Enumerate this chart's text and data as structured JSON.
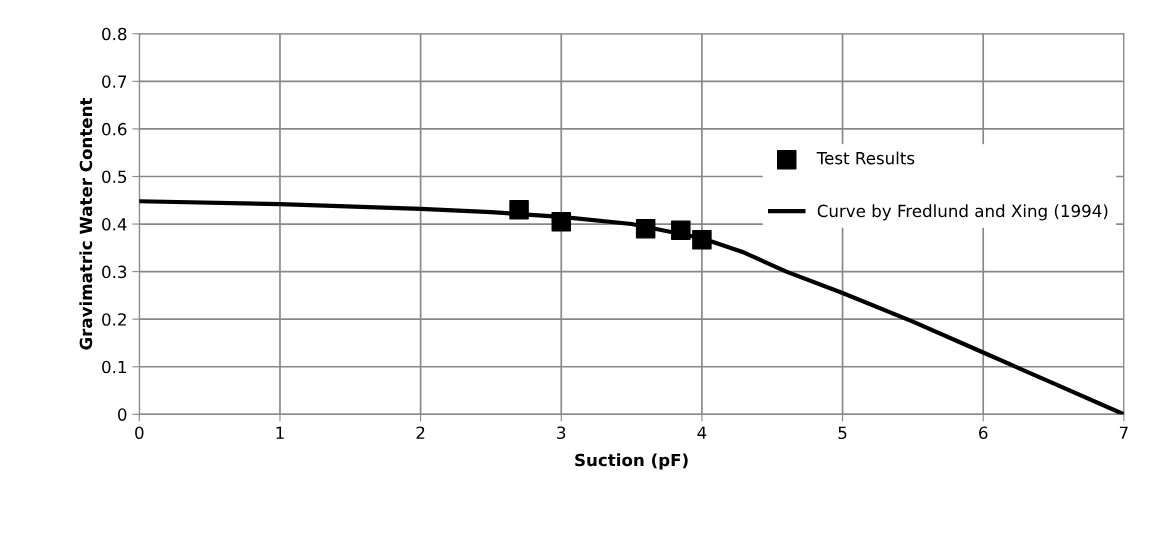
{
  "chart_data": {
    "type": "scatter",
    "xlabel": "Suction (pF)",
    "ylabel": "Gravimatric Water Content",
    "xlim": [
      0,
      7
    ],
    "ylim": [
      0,
      0.8
    ],
    "xticks": [
      0,
      1,
      2,
      3,
      4,
      5,
      6,
      7
    ],
    "yticks": [
      0,
      0.1,
      0.2,
      0.3,
      0.4,
      0.5,
      0.6,
      0.7,
      0.8
    ],
    "grid": true,
    "legend": "right",
    "series": [
      {
        "name": "Test Results",
        "marker": "square",
        "color": "#000000",
        "x": [
          2.7,
          3.0,
          3.6,
          3.85,
          4.0
        ],
        "values": [
          0.43,
          0.405,
          0.39,
          0.387,
          0.367
        ]
      },
      {
        "name": "Curve by Fredlund and Xing (1994)",
        "type": "line",
        "marker": "none",
        "line_style": "solid",
        "color": "#000000",
        "x": [
          0,
          1,
          2,
          2.5,
          3,
          3.5,
          4,
          4.3,
          4.6,
          5,
          5.5,
          6,
          6.5,
          7
        ],
        "values": [
          0.448,
          0.442,
          0.432,
          0.425,
          0.415,
          0.4,
          0.37,
          0.34,
          0.3,
          0.255,
          0.195,
          0.13,
          0.065,
          0.0
        ]
      }
    ]
  }
}
